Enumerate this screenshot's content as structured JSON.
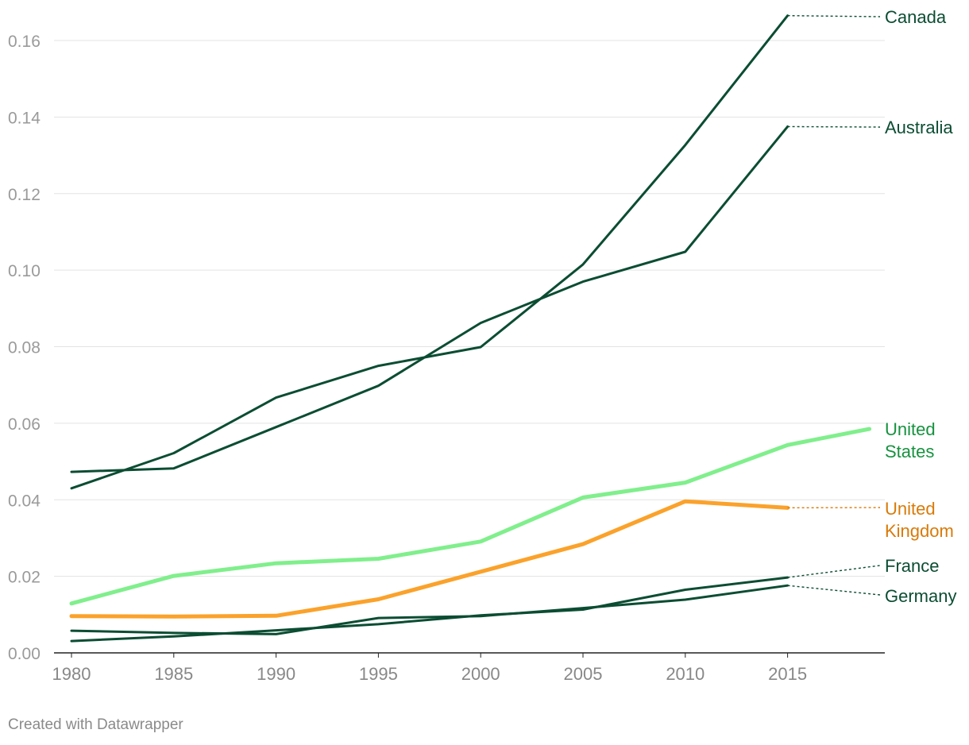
{
  "chart_data": {
    "type": "line",
    "title": "",
    "xlabel": "",
    "ylabel": "",
    "x_ticks": [
      1980,
      1985,
      1990,
      1995,
      2000,
      2005,
      2010,
      2015
    ],
    "y_ticks": [
      "0.00",
      "0.02",
      "0.04",
      "0.06",
      "0.08",
      "0.10",
      "0.12",
      "0.14",
      "0.16"
    ],
    "xlim": [
      1980,
      2020
    ],
    "ylim": [
      0,
      0.16
    ],
    "grid": true,
    "series": [
      {
        "name": "Canada",
        "label_lines": [
          "Canada"
        ],
        "color": "#0b4d33",
        "label_color": "#0b4d33",
        "x": [
          1980,
          1985,
          1990,
          1995,
          2000,
          2005,
          2010,
          2015
        ],
        "values": [
          0.043,
          0.0522,
          0.0667,
          0.075,
          0.0799,
          0.1015,
          0.1327,
          0.1665
        ]
      },
      {
        "name": "Australia",
        "label_lines": [
          "Australia"
        ],
        "color": "#0b4d33",
        "label_color": "#0b4d33",
        "x": [
          1980,
          1985,
          1990,
          1995,
          2000,
          2005,
          2010,
          2015
        ],
        "values": [
          0.0473,
          0.0482,
          0.059,
          0.0698,
          0.0862,
          0.097,
          0.1048,
          0.1375
        ]
      },
      {
        "name": "United States",
        "label_lines": [
          "United",
          "States"
        ],
        "color": "#80ef8c",
        "label_color": "#16923f",
        "x": [
          1980,
          1985,
          1990,
          1995,
          2000,
          2005,
          2010,
          2015,
          2019
        ],
        "values": [
          0.0129,
          0.0201,
          0.0234,
          0.0246,
          0.0291,
          0.0406,
          0.0445,
          0.0543,
          0.0585
        ]
      },
      {
        "name": "United Kingdom",
        "label_lines": [
          "United",
          "Kingdom"
        ],
        "color": "#fba22b",
        "label_color": "#d97a08",
        "x": [
          1980,
          1985,
          1990,
          1995,
          2000,
          2005,
          2010,
          2015
        ],
        "values": [
          0.0096,
          0.0095,
          0.0097,
          0.014,
          0.0212,
          0.0284,
          0.0396,
          0.0379
        ]
      },
      {
        "name": "France",
        "label_lines": [
          "France"
        ],
        "color": "#0b4d33",
        "label_color": "#0b4d33",
        "x": [
          1980,
          1985,
          1990,
          1995,
          2000,
          2005,
          2010,
          2015
        ],
        "values": [
          0.0031,
          0.0043,
          0.0059,
          0.0075,
          0.0098,
          0.0113,
          0.0165,
          0.0197
        ]
      },
      {
        "name": "Germany",
        "label_lines": [
          "Germany"
        ],
        "color": "#0b4d33",
        "label_color": "#0b4d33",
        "x": [
          1980,
          1985,
          1990,
          1995,
          2000,
          2005,
          2010,
          2015
        ],
        "values": [
          0.0058,
          0.0052,
          0.0049,
          0.0091,
          0.0096,
          0.0117,
          0.0139,
          0.0176
        ]
      }
    ]
  },
  "footer": {
    "credit": "Created with Datawrapper"
  }
}
